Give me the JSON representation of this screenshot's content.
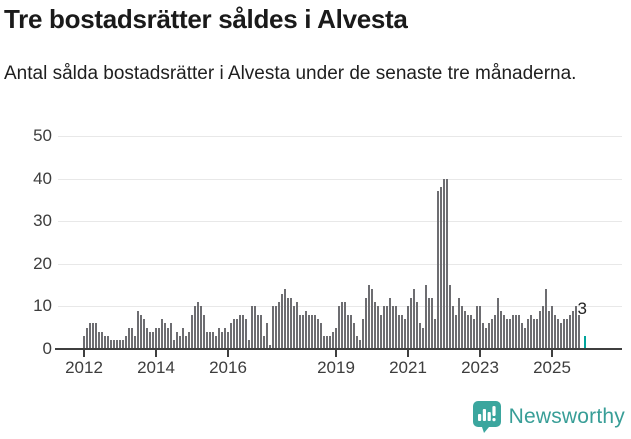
{
  "header": {
    "title": "Tre bostadsrätter såldes i Alvesta",
    "subtitle": "Antal sålda bostadsrätter i Alvesta under de senaste tre månaderna."
  },
  "chart_data": {
    "type": "bar",
    "title": "Tre bostadsrätter såldes i Alvesta",
    "subtitle": "Antal sålda bostadsrätter i Alvesta under de senaste tre månaderna.",
    "xlabel": "",
    "ylabel": "",
    "ylim": [
      0,
      50
    ],
    "yticks": [
      0,
      10,
      20,
      30,
      40,
      50
    ],
    "grid": "horizontal",
    "start_year": 2012,
    "period": "monthly",
    "xticks": [
      {
        "label": "2012",
        "index": 0
      },
      {
        "label": "2014",
        "index": 24
      },
      {
        "label": "2016",
        "index": 48
      },
      {
        "label": "2019",
        "index": 84
      },
      {
        "label": "2021",
        "index": 108
      },
      {
        "label": "2023",
        "index": 132
      },
      {
        "label": "2025",
        "index": 156
      }
    ],
    "values": [
      3,
      5,
      6,
      6,
      6,
      4,
      4,
      3,
      3,
      2,
      2,
      2,
      2,
      2,
      3,
      5,
      5,
      3,
      9,
      8,
      7,
      5,
      4,
      4,
      5,
      5,
      7,
      6,
      5,
      6,
      2,
      4,
      3,
      5,
      3,
      4,
      8,
      10,
      11,
      10,
      8,
      4,
      4,
      4,
      3,
      5,
      4,
      5,
      4,
      6,
      7,
      7,
      8,
      8,
      7,
      2,
      10,
      10,
      8,
      8,
      3,
      6,
      1,
      10,
      10,
      11,
      13,
      14,
      12,
      12,
      10,
      11,
      8,
      8,
      9,
      8,
      8,
      8,
      7,
      6,
      3,
      3,
      3,
      4,
      5,
      10,
      11,
      11,
      8,
      8,
      6,
      3,
      2,
      7,
      12,
      15,
      14,
      11,
      10,
      8,
      10,
      10,
      12,
      10,
      10,
      8,
      8,
      7,
      10,
      12,
      14,
      11,
      6,
      5,
      15,
      12,
      12,
      7,
      37,
      38,
      40,
      40,
      15,
      10,
      8,
      12,
      10,
      9,
      8,
      8,
      7,
      10,
      10,
      6,
      5,
      6,
      7,
      8,
      12,
      9,
      8,
      7,
      7,
      8,
      8,
      8,
      6,
      5,
      7,
      8,
      7,
      7,
      9,
      10,
      14,
      9,
      10,
      8,
      7,
      6,
      7,
      7,
      8,
      9,
      10,
      8,
      0,
      3
    ],
    "bar_color": "#6d6d71",
    "highlight": {
      "index": 167,
      "value": 3,
      "label": "3",
      "color": "#00a49c"
    }
  },
  "logo": {
    "text": "Newsworthy",
    "icon": "newsworthy-bars-icon",
    "color": "#3ba69e"
  }
}
